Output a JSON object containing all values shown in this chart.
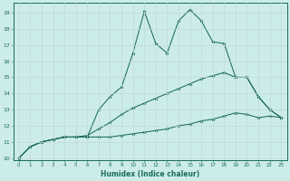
{
  "bg_color": "#ccecea",
  "line_color": "#1a6b5a",
  "xlabel": "Humidex (Indice chaleur)",
  "xlim": [
    -0.5,
    23.5
  ],
  "ylim": [
    9.85,
    19.6
  ],
  "yticks": [
    10,
    11,
    12,
    13,
    14,
    15,
    16,
    17,
    18,
    19
  ],
  "xticks": [
    0,
    1,
    2,
    3,
    4,
    5,
    6,
    7,
    8,
    9,
    10,
    11,
    12,
    13,
    14,
    15,
    16,
    17,
    18,
    19,
    20,
    21,
    22,
    23
  ],
  "line1_x": [
    0,
    1,
    2,
    3,
    4,
    5,
    6,
    7,
    8,
    9,
    10,
    11,
    12,
    13,
    14,
    15,
    16,
    17,
    18,
    19,
    20,
    21,
    22,
    23
  ],
  "line1_y": [
    10.0,
    10.7,
    11.0,
    11.15,
    11.3,
    11.3,
    11.3,
    11.3,
    11.3,
    11.4,
    11.5,
    11.6,
    11.7,
    11.8,
    12.0,
    12.1,
    12.3,
    12.4,
    12.6,
    12.8,
    12.7,
    12.5,
    12.6,
    12.5
  ],
  "line2_x": [
    0,
    1,
    2,
    3,
    4,
    5,
    6,
    7,
    8,
    9,
    10,
    11,
    12,
    13,
    14,
    15,
    16,
    17,
    18,
    19,
    20,
    21,
    22,
    23
  ],
  "line2_y": [
    10.0,
    10.7,
    11.0,
    11.15,
    11.3,
    11.3,
    11.4,
    11.8,
    12.2,
    12.7,
    13.1,
    13.4,
    13.7,
    14.0,
    14.3,
    14.6,
    14.9,
    15.1,
    15.3,
    15.0,
    15.0,
    13.8,
    13.0,
    12.5
  ],
  "line3_x": [
    0,
    1,
    2,
    3,
    4,
    5,
    6,
    7,
    8,
    9,
    10,
    11,
    12,
    13,
    14,
    15,
    16,
    17,
    18,
    19,
    20,
    21,
    22,
    23
  ],
  "line3_y": [
    10.0,
    10.7,
    11.0,
    11.15,
    11.3,
    11.3,
    11.3,
    13.0,
    13.8,
    14.4,
    16.5,
    19.1,
    17.1,
    16.5,
    18.5,
    19.2,
    18.5,
    17.2,
    17.1,
    15.0,
    15.0,
    13.8,
    13.0,
    12.5
  ]
}
